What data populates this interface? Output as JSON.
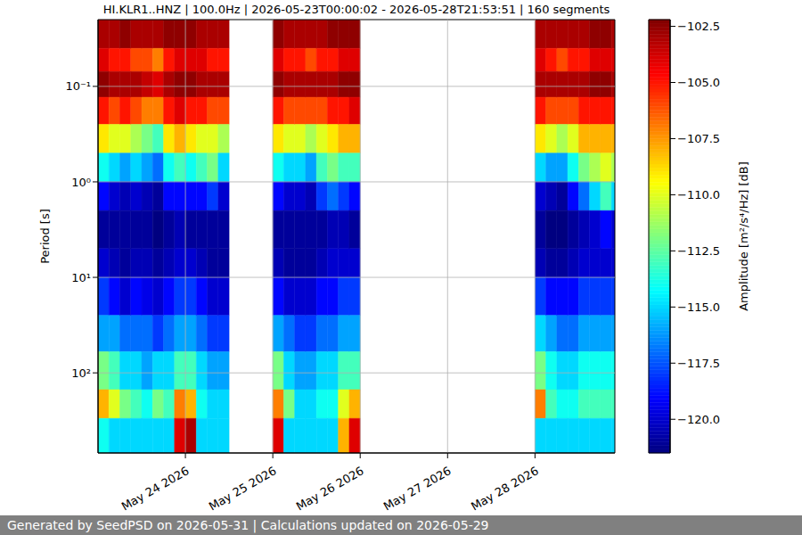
{
  "chart_data": {
    "type": "heatmap",
    "title": "HI.KLR1..HNZ | 100.0Hz | 2026-05-23T00:00:02 - 2026-05-28T21:53:51 | 160 segments",
    "y_label": "Period [s]",
    "footer": "Generated by SeedPSD on 2026-05-31 | Calculations updated on 2026-05-29",
    "log": "y",
    "grid": true,
    "xlim": [
      23.0,
      28.914
    ],
    "xticks": [
      {
        "value": 24,
        "label": "May 24 2026"
      },
      {
        "value": 25,
        "label": "May 25 2026"
      },
      {
        "value": 26,
        "label": "May 26 2026"
      },
      {
        "value": 27,
        "label": "May 27 2026"
      },
      {
        "value": 28,
        "label": "May 28 2026"
      }
    ],
    "ylim": [
      0.02,
      690
    ],
    "yticks": [
      {
        "value": 0.1,
        "label": "10⁻¹"
      },
      {
        "value": 1,
        "label": "10⁰"
      },
      {
        "value": 10,
        "label": "10¹"
      },
      {
        "value": 100,
        "label": "10²"
      }
    ],
    "colorbar": {
      "label": "Amplitude [m²/s⁴/Hz] [dB]",
      "range": [
        -121.5,
        -102.2
      ],
      "ticks": [
        {
          "value": -120,
          "label": "−120.0"
        },
        {
          "value": -117.5,
          "label": "−117.5"
        },
        {
          "value": -115,
          "label": "−115.0"
        },
        {
          "value": -112.5,
          "label": "−112.5"
        },
        {
          "value": -110,
          "label": "−110.0"
        },
        {
          "value": -107.5,
          "label": "−107.5"
        },
        {
          "value": -105,
          "label": "−105.0"
        },
        {
          "value": -102.5,
          "label": "−102.5"
        }
      ]
    },
    "cells": {
      "x_start": [
        23.0,
        23.125,
        23.25,
        23.375,
        23.5,
        23.625,
        23.75,
        23.875,
        24.0,
        24.125,
        24.25,
        24.375,
        25.0,
        25.125,
        25.25,
        25.375,
        25.5,
        25.625,
        25.75,
        25.875,
        28.0,
        28.125,
        28.25,
        28.375,
        28.5,
        28.625,
        28.75,
        28.875
      ],
      "x_end": [
        23.125,
        23.25,
        23.375,
        23.5,
        23.625,
        23.75,
        23.875,
        24.0,
        24.125,
        24.25,
        24.375,
        24.5,
        25.125,
        25.25,
        25.375,
        25.5,
        25.625,
        25.75,
        25.875,
        26.0,
        28.125,
        28.25,
        28.375,
        28.5,
        28.625,
        28.75,
        28.875,
        29.0
      ],
      "y_edges": [
        0.02,
        0.04,
        0.07,
        0.13,
        0.25,
        0.5,
        1,
        2,
        5,
        10,
        25,
        60,
        150,
        300,
        690
      ],
      "values": [
        [
          -103,
          -104,
          -102.5,
          -105,
          -109,
          -114,
          -119,
          -121,
          -120,
          -118,
          -116,
          -112,
          -108,
          -114
        ],
        [
          -103,
          -105,
          -103,
          -106,
          -110,
          -115,
          -120,
          -121,
          -120.5,
          -119,
          -116,
          -113,
          -110,
          -115
        ],
        [
          -102.5,
          -105,
          -103,
          -105,
          -110,
          -116,
          -120.5,
          -121,
          -121,
          -120,
          -117,
          -115,
          -112,
          -115
        ],
        [
          -103,
          -106,
          -103,
          -106,
          -111,
          -115,
          -120,
          -121,
          -120.5,
          -119,
          -117,
          -115,
          -113,
          -115
        ],
        [
          -103,
          -106,
          -103.5,
          -107,
          -112,
          -116,
          -120.5,
          -121,
          -120.5,
          -119.5,
          -117,
          -116,
          -114,
          -115
        ],
        [
          -103,
          -107,
          -104,
          -107,
          -113,
          -117,
          -121,
          -121.5,
          -121,
          -120,
          -118,
          -115,
          -112,
          -115
        ],
        [
          -102.5,
          -105,
          -103,
          -105,
          -109,
          -114,
          -119,
          -121,
          -120.5,
          -119,
          -117,
          -115,
          -113,
          -115
        ],
        [
          -102.5,
          -104,
          -102.5,
          -104,
          -108,
          -113,
          -119,
          -120.5,
          -120,
          -118,
          -116,
          -113,
          -107,
          -104
        ],
        [
          -102.5,
          -104,
          -102.5,
          -105,
          -109,
          -114,
          -119,
          -121,
          -120,
          -118,
          -116,
          -113,
          -108,
          -103
        ],
        [
          -103,
          -104,
          -103,
          -105,
          -110,
          -113,
          -119,
          -121,
          -120.5,
          -119,
          -117,
          -115,
          -114,
          -115
        ],
        [
          -103,
          -105,
          -103,
          -106,
          -110,
          -112,
          -118,
          -121,
          -121,
          -120,
          -118,
          -116,
          -115,
          -115
        ],
        [
          -103,
          -105,
          -103,
          -106,
          -111,
          -115,
          -120,
          -121,
          -121,
          -120,
          -118,
          -116,
          -115,
          -115
        ],
        [
          -102.5,
          -104,
          -102.5,
          -105,
          -109,
          -114,
          -119,
          -121,
          -120.5,
          -119,
          -116,
          -112,
          -107,
          -104
        ],
        [
          -103,
          -105,
          -103,
          -106,
          -110,
          -115,
          -120,
          -121,
          -121,
          -120,
          -117,
          -115,
          -112,
          -115
        ],
        [
          -103,
          -105,
          -103,
          -106,
          -110,
          -115,
          -120,
          -121,
          -121,
          -120,
          -118,
          -116,
          -115,
          -115
        ],
        [
          -103,
          -106,
          -103,
          -106,
          -111,
          -116,
          -120.5,
          -121,
          -121,
          -120,
          -118,
          -116,
          -115,
          -115
        ],
        [
          -103,
          -105,
          -103,
          -106,
          -110,
          -113,
          -118,
          -121,
          -120.5,
          -119,
          -117,
          -115,
          -114,
          -115
        ],
        [
          -102.5,
          -105,
          -103,
          -105,
          -109,
          -112,
          -117,
          -120.5,
          -120,
          -119,
          -117,
          -115,
          -114,
          -115
        ],
        [
          -102.5,
          -104,
          -102.5,
          -105,
          -108,
          -113,
          -118,
          -120.5,
          -120,
          -118,
          -116,
          -113,
          -110,
          -108
        ],
        [
          -102.5,
          -104,
          -102.5,
          -104,
          -108,
          -113,
          -119,
          -121,
          -120,
          -118,
          -116,
          -113,
          -108,
          -104
        ],
        [
          -103,
          -104,
          -103,
          -105,
          -109,
          -115,
          -120,
          -121,
          -120.5,
          -118,
          -115,
          -112,
          -107,
          -115
        ],
        [
          -103,
          -105,
          -103,
          -106,
          -110,
          -116,
          -120.5,
          -121.5,
          -121,
          -119,
          -116,
          -114,
          -113,
          -115
        ],
        [
          -103,
          -106,
          -103,
          -106,
          -111,
          -116,
          -121,
          -121.5,
          -121,
          -119,
          -117,
          -115,
          -114,
          -115
        ],
        [
          -103,
          -105,
          -103,
          -106,
          -110,
          -114,
          -119,
          -121,
          -120.5,
          -119,
          -117,
          -115,
          -114,
          -115
        ],
        [
          -103,
          -105,
          -103,
          -105,
          -108,
          -112,
          -117,
          -120.5,
          -120,
          -118,
          -116,
          -114,
          -113,
          -115
        ],
        [
          -102.5,
          -104,
          -102.5,
          -105,
          -108,
          -111,
          -115,
          -120,
          -120,
          -118,
          -116,
          -114,
          -113,
          -115
        ],
        [
          -102.5,
          -104,
          -102.5,
          -105,
          -108,
          -110,
          -113,
          -119,
          -120,
          -118,
          -116,
          -114,
          -113,
          -115
        ],
        [
          -103,
          -104,
          -103,
          -105,
          -108,
          -111,
          -115,
          -120,
          -120,
          -118,
          -116,
          -114,
          -113,
          -115
        ]
      ]
    }
  }
}
